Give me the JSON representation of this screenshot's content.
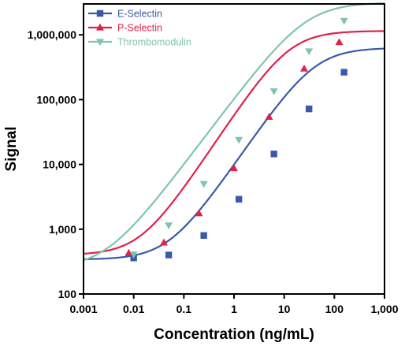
{
  "chart_data": {
    "type": "line",
    "xlabel": "Concentration (ng/mL)",
    "ylabel": "Signal",
    "xscale": "log",
    "yscale": "log",
    "xlim": [
      0.001,
      1000
    ],
    "ylim": [
      100,
      3000000
    ],
    "grid": false,
    "legend_position": "top-left",
    "x_ticks": [
      {
        "value": 0.001,
        "label": "0.001"
      },
      {
        "value": 0.01,
        "label": "0.01"
      },
      {
        "value": 0.1,
        "label": "0.1"
      },
      {
        "value": 1,
        "label": "1"
      },
      {
        "value": 10,
        "label": "10"
      },
      {
        "value": 100,
        "label": "100"
      },
      {
        "value": 1000,
        "label": "1,000"
      }
    ],
    "y_ticks": [
      {
        "value": 100,
        "label": "100"
      },
      {
        "value": 1000,
        "label": "1,000"
      },
      {
        "value": 10000,
        "label": "10,000"
      },
      {
        "value": 100000,
        "label": "100,000"
      },
      {
        "value": 1000000,
        "label": "1,000,000"
      }
    ],
    "series": [
      {
        "name": "E-Selectin",
        "color": "#3a5aa8",
        "marker": "square",
        "x": [
          0.01,
          0.05,
          0.25,
          1.25,
          6.25,
          31.25,
          156.25
        ],
        "y": [
          360,
          400,
          800,
          2900,
          14500,
          72000,
          265000
        ],
        "curve": {
          "min": 340,
          "max": 630000,
          "ec50": 40,
          "hill": 1.13
        }
      },
      {
        "name": "P-Selectin",
        "color": "#e2204a",
        "marker": "triangle-up",
        "x": [
          0.008,
          0.04,
          0.2,
          1.0,
          5.0,
          25.0,
          125.0
        ],
        "y": [
          430,
          620,
          1750,
          8700,
          54000,
          300000,
          770000
        ],
        "curve": {
          "min": 400,
          "max": 1150000,
          "ec50": 12.5,
          "hill": 1.17
        }
      },
      {
        "name": "Thrombomodulin",
        "color": "#7fc4ad",
        "marker": "triangle-down",
        "x": [
          0.01,
          0.05,
          0.25,
          1.25,
          6.25,
          31.25,
          156.25
        ],
        "y": [
          410,
          1150,
          5000,
          24000,
          135000,
          560000,
          1650000
        ],
        "curve": {
          "min": 245,
          "max": 3150000,
          "ec50": 27,
          "hill": 1.03
        }
      }
    ]
  }
}
